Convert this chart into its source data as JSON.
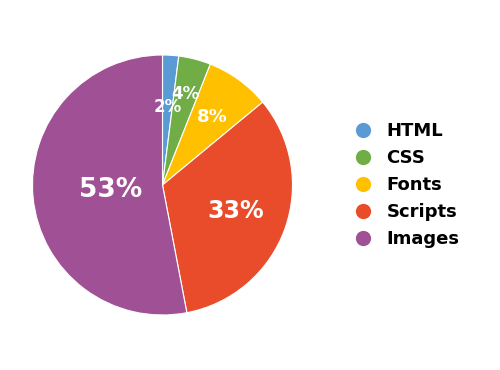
{
  "labels": [
    "HTML",
    "CSS",
    "Fonts",
    "Scripts",
    "Images"
  ],
  "values": [
    2,
    4,
    8,
    33,
    53
  ],
  "colors": [
    "#5b9bd5",
    "#70ad47",
    "#ffc000",
    "#e84c2b",
    "#a05195"
  ],
  "pct_labels": [
    "2%",
    "4%",
    "8%",
    "33%",
    "53%"
  ],
  "legend_labels": [
    "HTML",
    "CSS",
    "Fonts",
    "Scripts",
    "Images"
  ],
  "startangle": 90,
  "pct_radii": [
    0.6,
    0.72,
    0.65,
    0.6,
    0.4
  ]
}
